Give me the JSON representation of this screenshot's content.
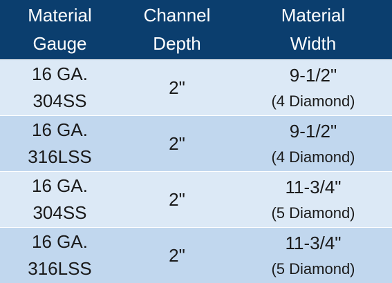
{
  "table": {
    "headers": [
      {
        "line1": "Material",
        "line2": "Gauge"
      },
      {
        "line1": "Channel",
        "line2": "Depth"
      },
      {
        "line1": "Material",
        "line2": "Width"
      }
    ],
    "rows": [
      {
        "gauge_line1": "16 GA.",
        "gauge_line2": "304SS",
        "depth": "2\"",
        "width_main": "9-1/2\"",
        "width_note": "(4 Diamond)"
      },
      {
        "gauge_line1": "16 GA.",
        "gauge_line2": "316LSS",
        "depth": "2\"",
        "width_main": "9-1/2\"",
        "width_note": "(4 Diamond)"
      },
      {
        "gauge_line1": "16 GA.",
        "gauge_line2": "304SS",
        "depth": "2\"",
        "width_main": "11-3/4\"",
        "width_note": "(5 Diamond)"
      },
      {
        "gauge_line1": "16 GA.",
        "gauge_line2": "316LSS",
        "depth": "2\"",
        "width_main": "11-3/4\"",
        "width_note": "(5 Diamond)"
      }
    ]
  },
  "colors": {
    "header_bg": "#0b3e6e",
    "row_light": "#dce9f6",
    "row_dark": "#c1d7ee",
    "header_text": "#ffffff",
    "body_text": "#1a1a1a"
  }
}
